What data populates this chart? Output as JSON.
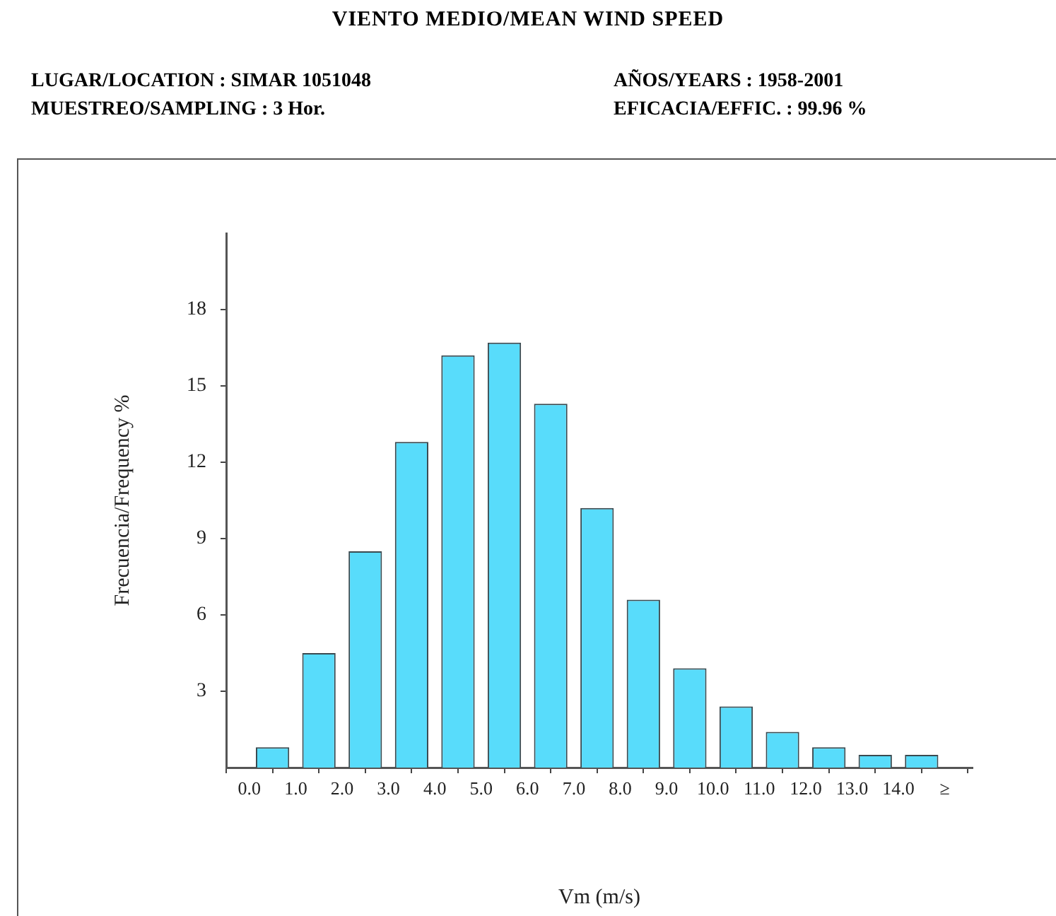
{
  "chart_data": {
    "type": "histogram",
    "title": "VIENTO MEDIO/MEAN WIND SPEED",
    "annotations": [
      "LUGAR/LOCATION : SIMAR 1051048",
      "AÑOS/YEARS : 1958-2001",
      "MUESTREO/SAMPLING : 3 Hor.",
      "EFICACIA/EFFIC. : 99.96 %"
    ],
    "xlabel": "Vm (m/s)",
    "ylabel": "Frecuencia/Frequency %",
    "bins": [
      0,
      1,
      2,
      3,
      4,
      5,
      6,
      7,
      8,
      9,
      10,
      11,
      12,
      13,
      14,
      15
    ],
    "values": [
      0.8,
      4.5,
      8.5,
      12.8,
      16.2,
      16.7,
      14.3,
      10.2,
      6.6,
      3.9,
      2.4,
      1.4,
      0.8,
      0.5,
      0.5
    ],
    "color": "#58dcfb",
    "xlim": [
      -0.5,
      15.6
    ],
    "xticks": [
      {
        "value": 0,
        "label": "0.0"
      },
      {
        "value": 1,
        "label": "1.0"
      },
      {
        "value": 2,
        "label": "2.0"
      },
      {
        "value": 3,
        "label": "3.0"
      },
      {
        "value": 4,
        "label": "4.0"
      },
      {
        "value": 5,
        "label": "5.0"
      },
      {
        "value": 6,
        "label": "6.0"
      },
      {
        "value": 7,
        "label": "7.0"
      },
      {
        "value": 8,
        "label": "8.0"
      },
      {
        "value": 9,
        "label": "9.0"
      },
      {
        "value": 10,
        "label": "10.0"
      },
      {
        "value": 11,
        "label": "11.0"
      },
      {
        "value": 12,
        "label": "12.0"
      },
      {
        "value": 13,
        "label": "13.0"
      },
      {
        "value": 14,
        "label": "14.0"
      },
      {
        "value": 15,
        "label": "≥"
      }
    ],
    "ylim": [
      0,
      21
    ],
    "yticks": [
      3,
      6,
      9,
      12,
      15,
      18
    ],
    "grid": false,
    "legend": false
  }
}
